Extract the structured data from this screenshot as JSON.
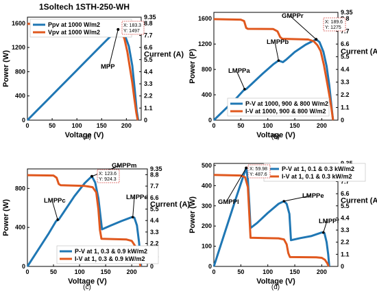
{
  "colors": {
    "pv": "#1f77b4",
    "iv": "#e0581e",
    "datatip_border": "#d9534f"
  },
  "chart_data": [
    {
      "type": "line",
      "id": "a",
      "caption": "(a)",
      "title": "1Soltech 1STH-250-WH",
      "xlabel": "Voltage (V)",
      "ylabel": "Power (W)",
      "y2label": "Current (A)",
      "xlim": [
        0,
        230
      ],
      "ylim": [
        0,
        1700
      ],
      "y2lim": [
        0,
        9.35
      ],
      "xticks": [
        0,
        50,
        100,
        150,
        200
      ],
      "yticks": [
        0,
        400,
        800,
        1200,
        1600
      ],
      "y2ticks": [
        0,
        1.1,
        2.2,
        3.3,
        4.4,
        5.5,
        6.6,
        7.7,
        8.8,
        9.35
      ],
      "legend": {
        "position": "top-left",
        "entries": [
          "Ppv at 1000 W/m2",
          "Vpv at 1000 W/m2"
        ]
      },
      "series": [
        {
          "name": "Ppv at 1000 W/m2",
          "axis": "left",
          "color": "#1f77b4",
          "points": [
            [
              0,
              0
            ],
            [
              20,
              165
            ],
            [
              40,
              330
            ],
            [
              60,
              495
            ],
            [
              80,
              660
            ],
            [
              100,
              825
            ],
            [
              120,
              990
            ],
            [
              140,
              1155
            ],
            [
              160,
              1320
            ],
            [
              175,
              1440
            ],
            [
              183.3,
              1497
            ],
            [
              190,
              1460
            ],
            [
              198,
              1380
            ],
            [
              205,
              1220
            ],
            [
              212,
              900
            ],
            [
              217,
              500
            ],
            [
              221,
              150
            ],
            [
              224,
              0
            ]
          ]
        },
        {
          "name": "Vpv at 1000 W/m2",
          "axis": "right",
          "color": "#e0581e",
          "points": [
            [
              0,
              8.74
            ],
            [
              60,
              8.74
            ],
            [
              120,
              8.7
            ],
            [
              160,
              8.55
            ],
            [
              175,
              8.35
            ],
            [
              183,
              8.18
            ],
            [
              190,
              7.95
            ],
            [
              196,
              7.4
            ],
            [
              202,
              6.2
            ],
            [
              207,
              4.8
            ],
            [
              212,
              3.4
            ],
            [
              216,
              2.0
            ],
            [
              220,
              0.7
            ],
            [
              223,
              0
            ]
          ]
        }
      ],
      "annotations": [
        {
          "label": "MPP",
          "x": 183.3,
          "y": 1497
        }
      ],
      "datatips": [
        {
          "lines": [
            "X: 183.3",
            "Y: 1497"
          ],
          "x": 183.3,
          "y": 1497
        }
      ]
    },
    {
      "type": "line",
      "id": "b",
      "caption": "(b)",
      "xlabel": "Voltage (V)",
      "ylabel": "Power (P)",
      "y2label": "Current (A)",
      "xlim": [
        0,
        230
      ],
      "ylim": [
        0,
        1700
      ],
      "y2lim": [
        0,
        9.35
      ],
      "xticks": [
        0,
        50,
        100,
        150,
        200
      ],
      "yticks": [
        0,
        400,
        800,
        1200,
        1600
      ],
      "y2ticks": [
        0,
        1.1,
        2.2,
        3.3,
        4.4,
        5.5,
        6.6,
        7.7,
        8.8,
        9.35
      ],
      "legend": {
        "position": "bottom-right",
        "entries": [
          "P-V at 1000, 900 & 800 W/m2",
          "I-V at 1000, 900 & 800 W/m2"
        ]
      },
      "series": [
        {
          "name": "P-V at 1000, 900 & 800 W/m2",
          "axis": "left",
          "color": "#1f77b4",
          "points": [
            [
              0,
              0
            ],
            [
              20,
              165
            ],
            [
              40,
              330
            ],
            [
              55,
              470
            ],
            [
              60,
              490
            ],
            [
              70,
              570
            ],
            [
              90,
              730
            ],
            [
              110,
              880
            ],
            [
              120,
              940
            ],
            [
              128,
              915
            ],
            [
              135,
              960
            ],
            [
              150,
              1075
            ],
            [
              170,
              1190
            ],
            [
              189.6,
              1275
            ],
            [
              196,
              1230
            ],
            [
              203,
              1080
            ],
            [
              209,
              850
            ],
            [
              214,
              550
            ],
            [
              219,
              150
            ],
            [
              221,
              0
            ]
          ]
        },
        {
          "name": "I-V at 1000, 900 & 800 W/m2",
          "axis": "right",
          "color": "#e0581e",
          "points": [
            [
              0,
              8.76
            ],
            [
              50,
              8.72
            ],
            [
              56,
              8.6
            ],
            [
              60,
              8.0
            ],
            [
              63,
              7.92
            ],
            [
              110,
              7.9
            ],
            [
              118,
              7.7
            ],
            [
              123,
              7.2
            ],
            [
              127,
              7.06
            ],
            [
              175,
              7.0
            ],
            [
              185,
              6.85
            ],
            [
              192,
              6.5
            ],
            [
              198,
              6.0
            ],
            [
              204,
              4.8
            ],
            [
              209,
              3.5
            ],
            [
              214,
              2.2
            ],
            [
              218,
              1.0
            ],
            [
              221,
              0
            ]
          ]
        }
      ],
      "annotations": [
        {
          "label": "LMPPa",
          "x": 57,
          "y": 490
        },
        {
          "label": "LMPPb",
          "x": 120,
          "y": 940
        },
        {
          "label": "GMPPr",
          "x": 189.6,
          "y": 1275
        }
      ],
      "datatips": [
        {
          "lines": [
            "X: 189.6",
            "Y: 1275"
          ],
          "x": 189.6,
          "y": 1275
        }
      ]
    },
    {
      "type": "line",
      "id": "c",
      "caption": "(c)",
      "xlabel": "Voltage (V)",
      "ylabel": "Power (W)",
      "y2label": "Current (A)",
      "xlim": [
        0,
        230
      ],
      "ylim": [
        0,
        1000
      ],
      "y2lim": [
        0,
        9.35
      ],
      "xticks": [
        0,
        50,
        100,
        150,
        200
      ],
      "yticks": [
        0,
        400,
        800
      ],
      "y2ticks": [
        0,
        1.1,
        2.2,
        3.3,
        4.4,
        5.5,
        6.6,
        7.7,
        8.8,
        9.35
      ],
      "legend": {
        "position": "bottom-center",
        "entries": [
          "P-V  at 1, 0.3 & 0.9 kW/m2",
          "I-V  at 1, 0.3 & 0.9 kW/m2"
        ]
      },
      "series": [
        {
          "name": "P-V  at 1, 0.3 & 0.9 kW/m2",
          "axis": "left",
          "color": "#1f77b4",
          "points": [
            [
              0,
              0
            ],
            [
              20,
              165
            ],
            [
              40,
              330
            ],
            [
              55,
              465
            ],
            [
              60,
              480
            ],
            [
              70,
              560
            ],
            [
              90,
              720
            ],
            [
              110,
              855
            ],
            [
              123.6,
              924.3
            ],
            [
              130,
              860
            ],
            [
              136,
              700
            ],
            [
              140,
              520
            ],
            [
              143,
              380
            ],
            [
              160,
              420
            ],
            [
              180,
              465
            ],
            [
              200,
              505
            ],
            [
              205,
              500
            ],
            [
              210,
              420
            ],
            [
              214,
              250
            ],
            [
              217,
              80
            ],
            [
              218,
              0
            ]
          ]
        },
        {
          "name": "I-V  at 1, 0.3 & 0.9 kW/m2",
          "axis": "right",
          "color": "#e0581e",
          "points": [
            [
              0,
              8.75
            ],
            [
              50,
              8.72
            ],
            [
              56,
              8.5
            ],
            [
              60,
              7.9
            ],
            [
              64,
              7.78
            ],
            [
              110,
              7.72
            ],
            [
              125,
              7.6
            ],
            [
              132,
              7.1
            ],
            [
              136,
              5.5
            ],
            [
              139,
              3.5
            ],
            [
              142,
              2.65
            ],
            [
              190,
              2.58
            ],
            [
              200,
              2.45
            ],
            [
              206,
              2.0
            ],
            [
              211,
              1.2
            ],
            [
              215,
              0.4
            ],
            [
              217,
              0
            ]
          ]
        }
      ],
      "annotations": [
        {
          "label": "LMPPc",
          "x": 58,
          "y": 480
        },
        {
          "label": "GMPPm",
          "x": 123.6,
          "y": 924.3
        },
        {
          "label": "LMPPd",
          "x": 202,
          "y": 505
        }
      ],
      "datatips": [
        {
          "lines": [
            "X: 123.6",
            "Y: 924.3"
          ],
          "x": 123.6,
          "y": 924.3
        }
      ]
    },
    {
      "type": "line",
      "id": "d",
      "caption": "(d)",
      "xlabel": "Voltage (V)",
      "ylabel": "Power (W)",
      "y2label": "Current (A)",
      "xlim": [
        0,
        230
      ],
      "ylim": [
        0,
        510
      ],
      "y2lim": [
        0,
        9.35
      ],
      "xticks": [
        0,
        50,
        100,
        150,
        200
      ],
      "yticks": [
        0,
        100,
        200,
        300,
        400,
        500
      ],
      "y2ticks": [
        0,
        1.1,
        2.2,
        3.3,
        4.4,
        5.5,
        6.6,
        7.7,
        8.8,
        9.35
      ],
      "legend": {
        "position": "top-right",
        "entries": [
          "P-V at 1, 0.1 & 0.3 kW/m2",
          "I-V at 1, 0.1 & 0.3 kW/m2"
        ]
      },
      "series": [
        {
          "name": "P-V at 1, 0.1 & 0.3 kW/m2",
          "axis": "left",
          "color": "#1f77b4",
          "points": [
            [
              0,
              0
            ],
            [
              20,
              165
            ],
            [
              40,
              330
            ],
            [
              55,
              450
            ],
            [
              59.98,
              487.6
            ],
            [
              63,
              430
            ],
            [
              66,
              300
            ],
            [
              68,
              190
            ],
            [
              80,
              215
            ],
            [
              100,
              265
            ],
            [
              120,
              310
            ],
            [
              130,
              323
            ],
            [
              135,
              310
            ],
            [
              140,
              260
            ],
            [
              143,
              130
            ],
            [
              160,
              140
            ],
            [
              180,
              150
            ],
            [
              200,
              168
            ],
            [
              205,
              165
            ],
            [
              209,
              120
            ],
            [
              212,
              60
            ],
            [
              214,
              0
            ]
          ]
        },
        {
          "name": "I-V at 1, 0.1 & 0.3 kW/m2",
          "axis": "right",
          "color": "#e0581e",
          "points": [
            [
              0,
              8.3
            ],
            [
              50,
              8.25
            ],
            [
              58,
              8.1
            ],
            [
              63,
              7.2
            ],
            [
              66,
              4.5
            ],
            [
              68,
              2.6
            ],
            [
              120,
              2.55
            ],
            [
              130,
              2.45
            ],
            [
              135,
              2.0
            ],
            [
              138,
              1.2
            ],
            [
              141,
              0.85
            ],
            [
              190,
              0.82
            ],
            [
              200,
              0.78
            ],
            [
              206,
              0.6
            ],
            [
              210,
              0.3
            ],
            [
              213,
              0
            ]
          ]
        }
      ],
      "annotations": [
        {
          "label": "GMPPl",
          "x": 59.98,
          "y": 487.6
        },
        {
          "label": "LMPPe",
          "x": 130,
          "y": 323
        },
        {
          "label": "LMPPf",
          "x": 203,
          "y": 168
        }
      ],
      "datatips": [
        {
          "lines": [
            "X: 59.98",
            "Y: 487.6"
          ],
          "x": 59.98,
          "y": 487.6
        }
      ]
    }
  ]
}
